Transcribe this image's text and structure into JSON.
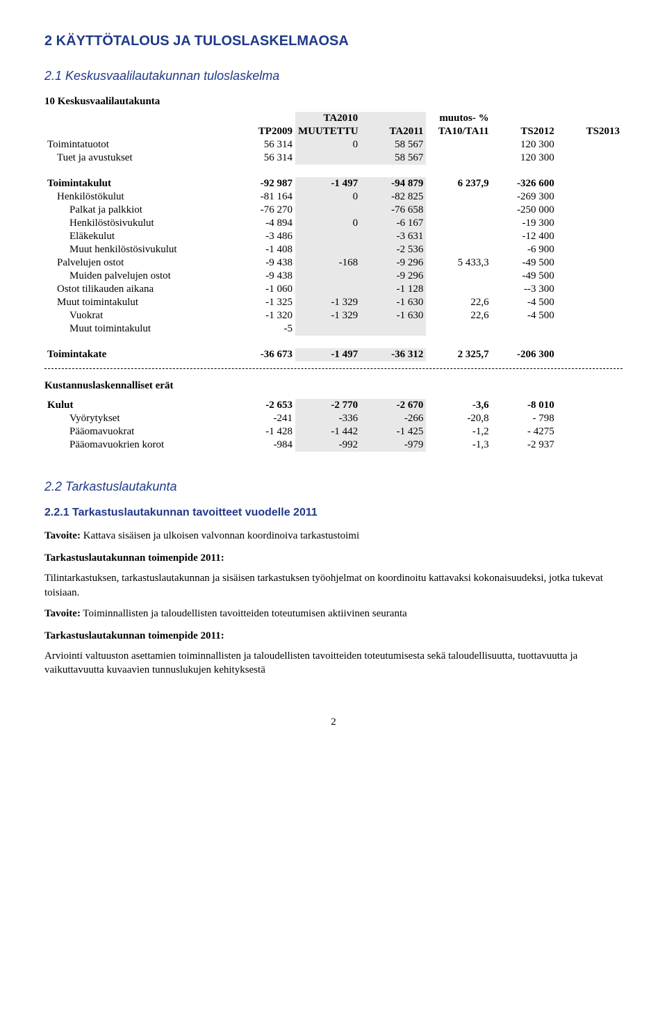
{
  "title": "2 KÄYTTÖTALOUS JA TULOSLASKELMAOSA",
  "section21": {
    "heading": "2.1 Keskusvaalilautakunnan tuloslaskelma",
    "tableTitle": "10 Keskusvaalilautakunta",
    "headers": {
      "col0": "",
      "col1": "TP2009",
      "col2_top": "TA2010",
      "col2_bot": "MUUTETTU",
      "col3": "TA2011",
      "col4_top": "muutos- %",
      "col4_bot": "TA10/TA11",
      "col5": "TS2012",
      "col6": "TS2013"
    },
    "rows": [
      {
        "label": "Toimintatuotot",
        "indent": 0,
        "bold": false,
        "c1": "56 314",
        "c2": "0",
        "c3": "58 567",
        "c4": "",
        "c5": "120 300",
        "c6": ""
      },
      {
        "label": "Tuet ja avustukset",
        "indent": 1,
        "bold": false,
        "c1": "56 314",
        "c2": "",
        "c3": "58 567",
        "c4": "",
        "c5": "120 300",
        "c6": ""
      }
    ],
    "rows2": [
      {
        "label": "Toimintakulut",
        "indent": 0,
        "bold": true,
        "c1": "-92 987",
        "c2": "-1 497",
        "c3": "-94 879",
        "c4": "6 237,9",
        "c5": "-326 600",
        "c6": ""
      },
      {
        "label": "Henkilöstökulut",
        "indent": 1,
        "bold": false,
        "c1": "-81 164",
        "c2": "0",
        "c3": "-82 825",
        "c4": "",
        "c5": "-269 300",
        "c6": ""
      },
      {
        "label": "Palkat ja palkkiot",
        "indent": 2,
        "bold": false,
        "c1": "-76 270",
        "c2": "",
        "c3": "-76 658",
        "c4": "",
        "c5": "-250 000",
        "c6": ""
      },
      {
        "label": "Henkilöstösivukulut",
        "indent": 2,
        "bold": false,
        "c1": "-4 894",
        "c2": "0",
        "c3": "-6 167",
        "c4": "",
        "c5": "-19 300",
        "c6": ""
      },
      {
        "label": "Eläkekulut",
        "indent": 2,
        "bold": false,
        "c1": "-3 486",
        "c2": "",
        "c3": "-3 631",
        "c4": "",
        "c5": "-12 400",
        "c6": ""
      },
      {
        "label": "Muut henkilöstösivukulut",
        "indent": 2,
        "bold": false,
        "c1": "-1 408",
        "c2": "",
        "c3": "-2 536",
        "c4": "",
        "c5": "-6 900",
        "c6": ""
      },
      {
        "label": "Palvelujen ostot",
        "indent": 1,
        "bold": false,
        "c1": "-9 438",
        "c2": "-168",
        "c3": "-9 296",
        "c4": "5 433,3",
        "c5": "-49 500",
        "c6": ""
      },
      {
        "label": "Muiden palvelujen ostot",
        "indent": 2,
        "bold": false,
        "c1": "-9 438",
        "c2": "",
        "c3": "-9 296",
        "c4": "",
        "c5": "-49 500",
        "c6": ""
      },
      {
        "label": "Ostot tilikauden aikana",
        "indent": 1,
        "bold": false,
        "c1": "-1 060",
        "c2": "",
        "c3": "-1 128",
        "c4": "",
        "c5": "--3 300",
        "c6": ""
      },
      {
        "label": "Muut toimintakulut",
        "indent": 1,
        "bold": false,
        "c1": "-1 325",
        "c2": "-1 329",
        "c3": "-1 630",
        "c4": "22,6",
        "c5": "-4 500",
        "c6": ""
      },
      {
        "label": "Vuokrat",
        "indent": 2,
        "bold": false,
        "c1": "-1 320",
        "c2": "-1 329",
        "c3": "-1 630",
        "c4": "22,6",
        "c5": "-4 500",
        "c6": ""
      },
      {
        "label": "Muut toimintakulut",
        "indent": 2,
        "bold": false,
        "c1": "-5",
        "c2": "",
        "c3": "",
        "c4": "",
        "c5": "",
        "c6": ""
      }
    ],
    "toimintakate": {
      "label": "Toimintakate",
      "c1": "-36 673",
      "c2": "-1 497",
      "c3": "-36 312",
      "c4": "2 325,7",
      "c5": "-206 300",
      "c6": ""
    },
    "kustTitle": "Kustannuslaskennalliset erät",
    "kustRows": [
      {
        "label": "Kulut",
        "indent": 0,
        "bold": true,
        "c1": "-2 653",
        "c2": "-2 770",
        "c3": "-2 670",
        "c4": "-3,6",
        "c5": "-8 010",
        "c6": ""
      },
      {
        "label": "Vyörytykset",
        "indent": 2,
        "bold": false,
        "c1": "-241",
        "c2": "-336",
        "c3": "-266",
        "c4": "-20,8",
        "c5": "- 798",
        "c6": ""
      },
      {
        "label": "Pääomavuokrat",
        "indent": 2,
        "bold": false,
        "c1": "-1 428",
        "c2": "-1 442",
        "c3": "-1 425",
        "c4": "-1,2",
        "c5": "- 4275",
        "c6": ""
      },
      {
        "label": "Pääomavuokrien korot",
        "indent": 2,
        "bold": false,
        "c1": "-984",
        "c2": "-992",
        "c3": "-979",
        "c4": "-1,3",
        "c5": "-2 937",
        "c6": ""
      }
    ]
  },
  "section22": {
    "heading": "2.2 Tarkastuslautakunta",
    "subheading": "2.2.1 Tarkastuslautakunnan tavoitteet vuodelle 2011",
    "tavoite1_prefix": "Tavoite:",
    "tavoite1_text": " Kattava sisäisen ja ulkoisen valvonnan koordinoiva tarkastustoimi",
    "toimenpide1": "Tarkastuslautakunnan toimenpide 2011:",
    "body1": "Tilintarkastuksen, tarkastuslautakunnan ja sisäisen tarkastuksen työohjelmat on koordinoitu kattavaksi kokonaisuudeksi, jotka tukevat toisiaan.",
    "tavoite2_prefix": "Tavoite:",
    "tavoite2_text": " Toiminnallisten ja taloudellisten tavoitteiden toteutumisen aktiivinen seuranta",
    "toimenpide2": "Tarkastuslautakunnan toimenpide 2011:",
    "body2": "Arviointi valtuuston asettamien toiminnallisten ja taloudellisten tavoitteiden toteutumisesta sekä taloudellisuutta, tuottavuutta ja vaikuttavuutta kuvaavien tunnuslukujen kehityksestä"
  },
  "pageNumber": "2"
}
